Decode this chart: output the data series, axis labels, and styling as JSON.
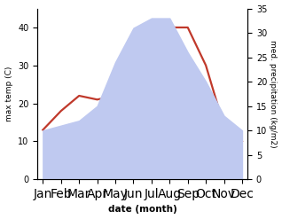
{
  "months": [
    "Jan",
    "Feb",
    "Mar",
    "Apr",
    "May",
    "Jun",
    "Jul",
    "Aug",
    "Sep",
    "Oct",
    "Nov",
    "Dec"
  ],
  "temperature": [
    13,
    18,
    22,
    21,
    22,
    30,
    40,
    40,
    40,
    30,
    14,
    10
  ],
  "precipitation": [
    10,
    11,
    12,
    15,
    24,
    31,
    33,
    33,
    26,
    20,
    13,
    10
  ],
  "temp_color": "#c0392b",
  "precip_fill_color": "#bfc9f0",
  "temp_ylim": [
    0,
    45
  ],
  "precip_ylim": [
    0,
    35
  ],
  "temp_yticks": [
    0,
    10,
    20,
    30,
    40
  ],
  "precip_yticks": [
    0,
    5,
    10,
    15,
    20,
    25,
    30,
    35
  ],
  "ylabel_left": "max temp (C)",
  "ylabel_right": "med. precipitation (kg/m2)",
  "xlabel": "date (month)",
  "background_color": "#ffffff",
  "temp_linewidth": 1.6
}
